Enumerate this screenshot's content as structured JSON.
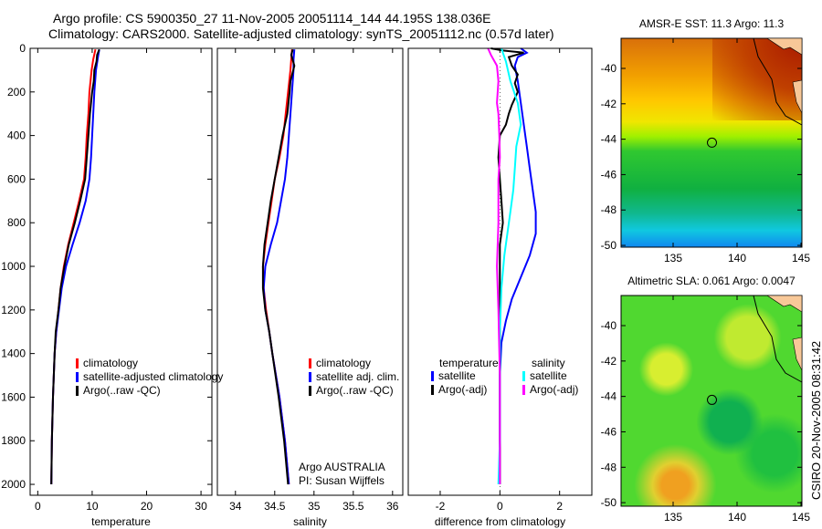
{
  "title_line1": "Argo profile: CS 5900350_27 11-Nov-2005 20051114_144 44.195S 138.036E",
  "title_line2": "Climatology: CARS2000. Satellite-adjusted climatology: synTS_20051112.nc (0.57d later)",
  "colors": {
    "clim": "#ff0000",
    "sat": "#0000ff",
    "argo": "#000000",
    "sal_sat": "#00ffff",
    "sal_argo": "#ff00ff"
  },
  "chart_data": [
    {
      "type": "line",
      "xlabel": "temperature",
      "ylabel": "",
      "xlim": [
        -1.4,
        32
      ],
      "ylim": [
        0,
        2050
      ],
      "yreversed": true,
      "xticks": [
        0,
        10,
        20,
        30
      ],
      "yticks": [
        0,
        200,
        400,
        600,
        800,
        1000,
        1200,
        1400,
        1600,
        1800,
        2000
      ],
      "legend": [
        "climatology",
        "satellite-adjusted climatology",
        "Argo(..raw -QC)"
      ],
      "series": [
        {
          "name": "climatology",
          "color": "clim",
          "depth": [
            5,
            50,
            100,
            200,
            300,
            400,
            500,
            600,
            700,
            800,
            900,
            1000,
            1100,
            1200,
            1300,
            1400,
            1600,
            1800,
            2000
          ],
          "values": [
            10.6,
            10.2,
            9.9,
            9.5,
            9.3,
            9.0,
            8.8,
            8.5,
            7.6,
            6.6,
            5.6,
            4.8,
            4.2,
            3.8,
            3.4,
            3.1,
            2.8,
            2.6,
            2.5
          ]
        },
        {
          "name": "satellite-adjusted climatology",
          "color": "sat",
          "depth": [
            5,
            50,
            100,
            200,
            300,
            400,
            500,
            600,
            700,
            800,
            900,
            1000,
            1100,
            1200,
            1300,
            1400,
            1600,
            1800,
            2000
          ],
          "values": [
            11.3,
            11.0,
            10.7,
            10.4,
            10.2,
            10.0,
            9.8,
            9.5,
            8.8,
            7.7,
            6.4,
            5.2,
            4.4,
            3.9,
            3.4,
            3.1,
            2.8,
            2.6,
            2.5
          ]
        },
        {
          "name": "Argo(..raw -QC)",
          "color": "argo",
          "depth": [
            5,
            30,
            60,
            100,
            150,
            200,
            300,
            400,
            500,
            600,
            700,
            800,
            900,
            1000,
            1100,
            1200,
            1300,
            1400,
            1600,
            1800,
            2000
          ],
          "values": [
            11.3,
            10.9,
            10.8,
            10.4,
            10.3,
            10.0,
            9.6,
            9.3,
            9.0,
            8.7,
            7.8,
            6.8,
            5.7,
            4.9,
            4.2,
            3.8,
            3.3,
            3.1,
            2.8,
            2.6,
            2.5
          ]
        }
      ]
    },
    {
      "type": "line",
      "xlabel": "salinity",
      "ylabel": "",
      "xlim": [
        33.77,
        36.13
      ],
      "ylim": [
        0,
        2050
      ],
      "yreversed": true,
      "xticks": [
        34,
        34.5,
        35,
        35.5,
        36
      ],
      "yticks": [],
      "legend": [
        "climatology",
        "satellite adj. clim.",
        "Argo(..raw -QC)"
      ],
      "annotation": [
        "Argo AUSTRALIA",
        "PI: Susan Wijffels"
      ],
      "series": [
        {
          "name": "climatology",
          "color": "clim",
          "depth": [
            5,
            50,
            100,
            200,
            300,
            400,
            500,
            600,
            700,
            800,
            900,
            1000,
            1100,
            1200,
            1300,
            1400,
            1600,
            1800,
            2000
          ],
          "values": [
            34.72,
            34.71,
            34.7,
            34.67,
            34.64,
            34.61,
            34.56,
            34.5,
            34.46,
            34.42,
            34.38,
            34.35,
            34.36,
            34.39,
            34.43,
            34.47,
            34.56,
            34.63,
            34.68
          ]
        },
        {
          "name": "satellite adj. clim.",
          "color": "sat",
          "depth": [
            5,
            50,
            100,
            200,
            300,
            400,
            500,
            600,
            700,
            800,
            900,
            1000,
            1100,
            1200,
            1300,
            1400,
            1600,
            1800,
            2000
          ],
          "values": [
            34.75,
            34.74,
            34.74,
            34.72,
            34.7,
            34.68,
            34.66,
            34.63,
            34.58,
            34.53,
            34.45,
            34.38,
            34.36,
            34.38,
            34.43,
            34.47,
            34.56,
            34.63,
            34.68
          ]
        },
        {
          "name": "Argo(..raw -QC)",
          "color": "argo",
          "depth": [
            5,
            30,
            80,
            150,
            200,
            300,
            400,
            500,
            600,
            700,
            800,
            900,
            1000,
            1100,
            1200,
            1300,
            1400,
            1600,
            1800,
            2000
          ],
          "values": [
            34.73,
            34.71,
            34.75,
            34.7,
            34.69,
            34.66,
            34.6,
            34.55,
            34.5,
            34.45,
            34.41,
            34.37,
            34.35,
            34.35,
            34.38,
            34.43,
            34.47,
            34.55,
            34.62,
            34.67
          ]
        }
      ]
    },
    {
      "type": "line",
      "xlabel": "difference from climatology",
      "ylabel": "",
      "xlim": [
        -3.07,
        3.08
      ],
      "ylim": [
        0,
        2050
      ],
      "yreversed": true,
      "xticks": [
        -2,
        0,
        2
      ],
      "yticks": [],
      "legend": {
        "temperature": [
          "satellite",
          "Argo(-adj)"
        ],
        "salinity": [
          "satellite",
          "Argo(-adj)"
        ],
        "headers": [
          "temperature",
          "salinity"
        ]
      },
      "series": [
        {
          "name": "temperature satellite",
          "color": "sat",
          "depth": [
            0,
            20,
            40,
            80,
            150,
            250,
            350,
            450,
            550,
            650,
            750,
            850,
            950,
            1050,
            1150,
            1250,
            1350,
            1500,
            1800,
            2000
          ],
          "values": [
            0.7,
            0.9,
            0.6,
            0.5,
            0.6,
            0.7,
            0.8,
            0.9,
            1.0,
            1.1,
            1.2,
            1.2,
            1.0,
            0.7,
            0.4,
            0.2,
            0.05,
            0.0,
            0.0,
            0.0
          ]
        },
        {
          "name": "temperature Argo(-adj)",
          "color": "argo",
          "depth": [
            0,
            10,
            20,
            40,
            80,
            120,
            160,
            200,
            260,
            300,
            350,
            400,
            500,
            600,
            700,
            800,
            900,
            1000,
            1200,
            1500,
            2000
          ],
          "values": [
            -0.3,
            0.1,
            0.8,
            0.3,
            0.4,
            0.6,
            0.5,
            0.6,
            0.4,
            0.3,
            0.2,
            0.0,
            -0.05,
            0.0,
            0.05,
            0.1,
            0.0,
            0.0,
            0.0,
            0.0,
            0.0
          ]
        },
        {
          "name": "salinity satellite",
          "color": "sal_sat",
          "depth": [
            0,
            20,
            60,
            150,
            250,
            350,
            450,
            550,
            650,
            750,
            850,
            950,
            1100,
            1300,
            1500,
            1800,
            2000
          ],
          "values": [
            0.05,
            0.1,
            0.2,
            0.35,
            0.6,
            0.7,
            0.55,
            0.5,
            0.45,
            0.35,
            0.25,
            0.15,
            0.05,
            0.0,
            0.0,
            0.0,
            -0.05
          ]
        },
        {
          "name": "salinity Argo(-adj)",
          "color": "sal_argo",
          "depth": [
            0,
            30,
            80,
            150,
            250,
            300,
            400,
            500,
            600,
            800,
            1000,
            1200,
            1500,
            1800,
            2000
          ],
          "values": [
            -0.4,
            -0.3,
            -0.1,
            -0.05,
            -0.1,
            -0.05,
            -0.02,
            0.0,
            -0.05,
            -0.05,
            -0.1,
            -0.05,
            0.0,
            0.0,
            0.0
          ]
        }
      ]
    },
    {
      "type": "heatmap",
      "title": "AMSR-E SST: 11.3 Argo: 11.3",
      "xlim": [
        130.93,
        145.07
      ],
      "ylim": [
        -50.1,
        -38.3
      ],
      "xticks": [
        135,
        140,
        145
      ],
      "yticks": [
        -40,
        -42,
        -44,
        -46,
        -48,
        -50
      ],
      "marker": {
        "lon": 138.036,
        "lat": -44.195
      }
    },
    {
      "type": "heatmap",
      "title": "Altimetric SLA: 0.061 Argo: 0.0047",
      "xlim": [
        130.93,
        145.07
      ],
      "ylim": [
        -50.2,
        -38.3
      ],
      "xticks": [
        135,
        140,
        145
      ],
      "yticks": [
        -40,
        -42,
        -44,
        -46,
        -48,
        -50
      ],
      "marker": {
        "lon": 138.036,
        "lat": -44.195
      }
    }
  ],
  "side_label": "CSIRO 20-Nov-2005 08:31:42"
}
